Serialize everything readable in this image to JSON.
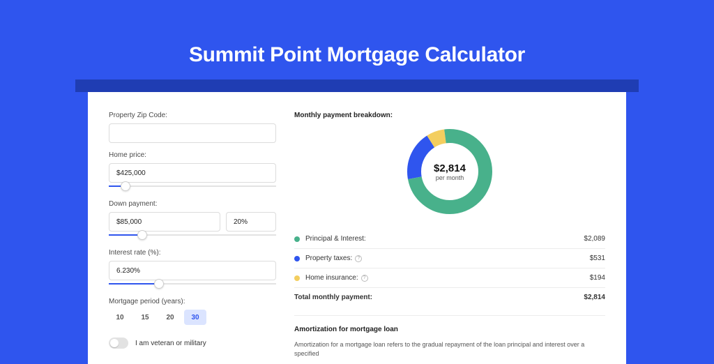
{
  "page": {
    "title": "Summit Point Mortgage Calculator",
    "colors": {
      "page_bg": "#2f55ee",
      "band_bg": "#1f3db3",
      "card_bg": "#ffffff",
      "accent": "#2f55ee"
    }
  },
  "form": {
    "zip_label": "Property Zip Code:",
    "zip_value": "",
    "home_price_label": "Home price:",
    "home_price_value": "$425,000",
    "home_price_slider_pct": 10,
    "down_payment_label": "Down payment:",
    "down_payment_value": "$85,000",
    "down_payment_pct_value": "20%",
    "down_payment_slider_pct": 20,
    "interest_label": "Interest rate (%):",
    "interest_value": "6.230%",
    "interest_slider_pct": 30,
    "period_label": "Mortgage period (years):",
    "periods": {
      "opt10": "10",
      "opt15": "15",
      "opt20": "20",
      "opt30": "30",
      "selected": "30"
    },
    "veteran_label": "I am veteran or military",
    "veteran_on": false
  },
  "breakdown": {
    "title": "Monthly payment breakdown:",
    "center_amount": "$2,814",
    "center_sub": "per month",
    "donut": {
      "size": 122,
      "thickness": 20,
      "slices": [
        {
          "label": "Principal & Interest",
          "value": 2089,
          "color": "#48b18b"
        },
        {
          "label": "Property taxes",
          "value": 531,
          "color": "#2f55ee"
        },
        {
          "label": "Home insurance",
          "value": 194,
          "color": "#f3ce5f"
        }
      ],
      "total": 2814
    },
    "legend": {
      "pi_label": "Principal & Interest:",
      "pi_value": "$2,089",
      "pi_color": "#48b18b",
      "tax_label": "Property taxes:",
      "tax_value": "$531",
      "tax_color": "#2f55ee",
      "ins_label": "Home insurance:",
      "ins_value": "$194",
      "ins_color": "#f3ce5f",
      "total_label": "Total monthly payment:",
      "total_value": "$2,814"
    }
  },
  "amortization": {
    "title": "Amortization for mortgage loan",
    "text": "Amortization for a mortgage loan refers to the gradual repayment of the loan principal and interest over a specified"
  }
}
